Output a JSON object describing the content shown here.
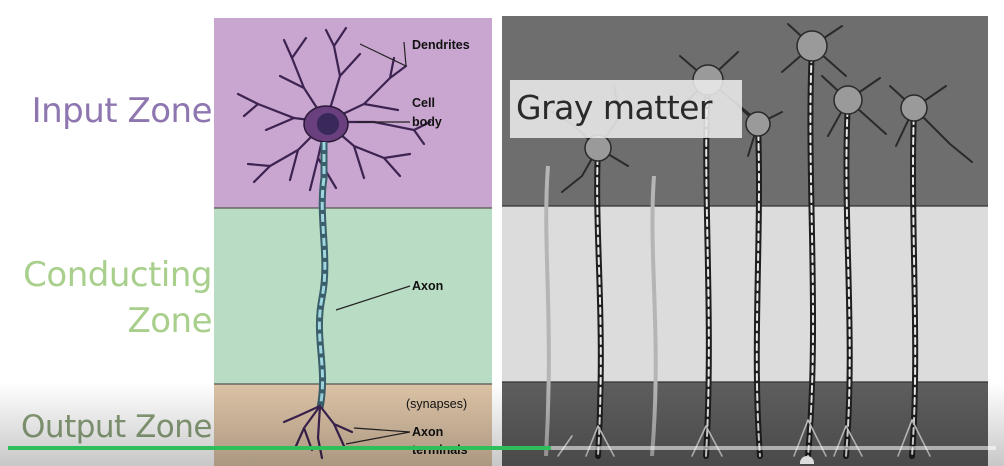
{
  "zones": {
    "input": "Input Zone",
    "conducting_line1": "Conducting",
    "conducting_line2": "Zone",
    "output": "Output Zone"
  },
  "neuron_labels": {
    "dendrites": "Dendrites",
    "cell_body_line1": "Cell",
    "cell_body_line2": "body",
    "axon": "Axon",
    "synapses": "(synapses)",
    "axon_terminals_line1": "Axon",
    "axon_terminals_line2": "terminals"
  },
  "photo": {
    "title": "Gray matter"
  },
  "colors": {
    "input_zone": "#c8a6cf",
    "conducting_zone": "#b9dcc4",
    "output_zone": "#dcc3a6",
    "progress": "#2fbf5a"
  },
  "video_progress": 0.55
}
